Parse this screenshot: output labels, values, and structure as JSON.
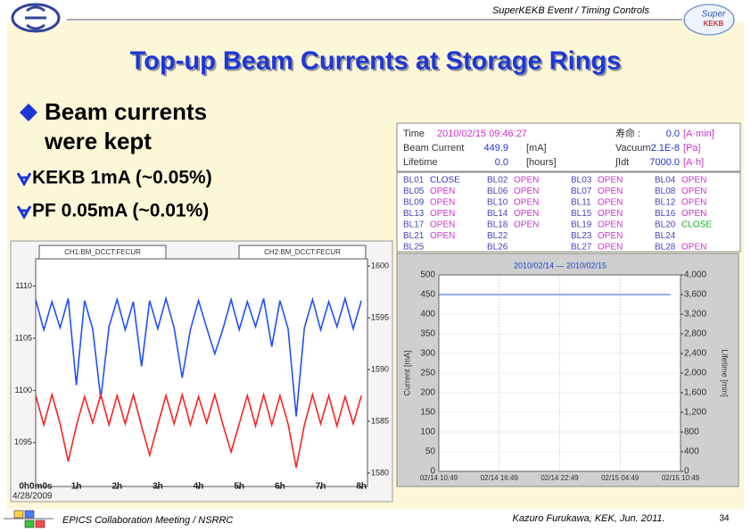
{
  "header": {
    "text": "SuperKEKB Event / Timing Controls",
    "logo_text": [
      "Super",
      "KEKB"
    ]
  },
  "title": "Top-up Beam Currents at Storage Rings",
  "main_bullet": {
    "lines": [
      "Beam currents",
      "were kept"
    ]
  },
  "sub_bullets": [
    "KEKB 1mA (~0.05%)",
    "PF 0.05mA (~0.01%)"
  ],
  "status": {
    "left": [
      [
        "Time",
        "2010/02/15 09:46:27"
      ],
      [
        "Beam Current",
        "449.9",
        "[mA]"
      ],
      [
        "Lifetime",
        "0.0",
        "[hours]"
      ]
    ],
    "right": [
      [
        "寿命 :",
        "0.0",
        "[A·min]"
      ],
      [
        "Vacuum :",
        "2.1E-8",
        "[Pa]"
      ],
      [
        "∫Idt",
        "7000.0",
        "[A·h]"
      ]
    ]
  },
  "beamlines": [
    {
      "name": "BL01",
      "status": "CLOSE",
      "color": "#3333cc"
    },
    {
      "name": "BL02",
      "status": "OPEN",
      "color": "#cc33cc"
    },
    {
      "name": "BL03",
      "status": "OPEN",
      "color": "#cc33cc"
    },
    {
      "name": "BL04",
      "status": "OPEN",
      "color": "#cc33cc"
    },
    {
      "name": "BL05",
      "status": "OPEN",
      "color": "#cc33cc"
    },
    {
      "name": "BL06",
      "status": "OPEN",
      "color": "#cc33cc"
    },
    {
      "name": "BL07",
      "status": "OPEN",
      "color": "#cc33cc"
    },
    {
      "name": "BL08",
      "status": "OPEN",
      "color": "#cc33cc"
    },
    {
      "name": "BL09",
      "status": "OPEN",
      "color": "#cc33cc"
    },
    {
      "name": "BL10",
      "status": "OPEN",
      "color": "#cc33cc"
    },
    {
      "name": "BL11",
      "status": "OPEN",
      "color": "#cc33cc"
    },
    {
      "name": "BL12",
      "status": "OPEN",
      "color": "#cc33cc"
    },
    {
      "name": "BL13",
      "status": "OPEN",
      "color": "#cc33cc"
    },
    {
      "name": "BL14",
      "status": "OPEN",
      "color": "#cc33cc"
    },
    {
      "name": "BL15",
      "status": "OPEN",
      "color": "#cc33cc"
    },
    {
      "name": "BL16",
      "status": "OPEN",
      "color": "#cc33cc"
    },
    {
      "name": "BL17",
      "status": "OPEN",
      "color": "#cc33cc"
    },
    {
      "name": "BL18",
      "status": "OPEN",
      "color": "#cc33cc"
    },
    {
      "name": "BL19",
      "status": "OPEN",
      "color": "#cc33cc"
    },
    {
      "name": "BL20",
      "status": "CLOSE",
      "color": "#22aa22"
    },
    {
      "name": "BL21",
      "status": "OPEN",
      "color": "#cc33cc"
    },
    {
      "name": "BL22"
    },
    {
      "name": "BL23",
      "status": "OPEN",
      "color": "#cc33cc"
    },
    {
      "name": "BL24"
    },
    {
      "name": "BL25"
    },
    {
      "name": "BL26"
    },
    {
      "name": "BL27",
      "status": "OPEN",
      "color": "#cc33cc"
    },
    {
      "name": "BL28",
      "status": "OPEN",
      "color": "#cc33cc"
    }
  ],
  "chart_data": [
    {
      "type": "line",
      "channel_labels": [
        "CH1:BM_DCCT:FECUR",
        "CH2:BM_DCCT:FECUR"
      ],
      "date": "4/28/2009",
      "xlim": [
        0,
        8.15
      ],
      "xticks": [
        {
          "value": 0,
          "label": "0h0m0s"
        },
        {
          "value": 1,
          "label": "1h"
        },
        {
          "value": 2,
          "label": "2h"
        },
        {
          "value": 3,
          "label": "3h"
        },
        {
          "value": 4,
          "label": "4h"
        },
        {
          "value": 5,
          "label": "5h"
        },
        {
          "value": 6,
          "label": "6h"
        },
        {
          "value": 7,
          "label": "7h"
        },
        {
          "value": 8,
          "label": "8h"
        }
      ],
      "ylim": [
        1090.8,
        1112.6
      ],
      "yticks": [
        1095,
        1100,
        1105,
        1110
      ],
      "y2lim": [
        1578.7,
        1600.7
      ],
      "y2ticks": [
        1580,
        1585,
        1590,
        1595,
        1600
      ],
      "x": [
        0,
        0.2,
        0.4,
        0.6,
        0.8,
        1,
        1.2,
        1.4,
        1.6,
        1.8,
        2,
        2.2,
        2.4,
        2.6,
        2.8,
        3,
        3.2,
        3.4,
        3.6,
        3.8,
        4,
        4.2,
        4.4,
        4.6,
        4.8,
        5,
        5.2,
        5.4,
        5.6,
        5.8,
        6,
        6.2,
        6.4,
        6.6,
        6.8,
        7,
        7.2,
        7.4,
        7.6,
        7.8,
        8
      ],
      "series": [
        {
          "color": "#1f4fff",
          "values": [
            1108.7,
            1105.8,
            1108.5,
            1106,
            1108.8,
            1100.5,
            1108.6,
            1105.9,
            1099.2,
            1106.1,
            1108.7,
            1105.8,
            1108.5,
            1102.3,
            1108.6,
            1105.9,
            1108.8,
            1106,
            1101.2,
            1105.8,
            1108.6,
            1106,
            1103.5,
            1105.9,
            1108.7,
            1105.8,
            1108.5,
            1106.1,
            1108.8,
            1104.2,
            1108.6,
            1105.9,
            1097.5,
            1106,
            1108.7,
            1105.8,
            1108.5,
            1106.1,
            1108.8,
            1105.9,
            1108.6
          ]
        },
        {
          "color": "#ff2020",
          "values": [
            1099.5,
            1096.7,
            1099.6,
            1096.8,
            1093.2,
            1096.6,
            1099.4,
            1096.9,
            1099.6,
            1096.7,
            1099.5,
            1096.8,
            1099.6,
            1096.6,
            1093.8,
            1096.7,
            1099.5,
            1096.8,
            1099.6,
            1096.7,
            1099.4,
            1096.9,
            1099.6,
            1096.7,
            1094.1,
            1096.8,
            1099.5,
            1096.6,
            1099.6,
            1096.7,
            1099.5,
            1096.8,
            1092.6,
            1096.7,
            1099.6,
            1096.8,
            1099.5,
            1096.6,
            1099.4,
            1096.8,
            1099.5
          ]
        }
      ]
    },
    {
      "type": "line",
      "title": "2010/02/14 — 2010/02/15",
      "ylabel": "Current [mA]",
      "y2label": "Lifetime [min]",
      "grid": true,
      "xlim": [
        0,
        24
      ],
      "xticks": [
        {
          "value": 0,
          "label": "02/14 10:49"
        },
        {
          "value": 6,
          "label": "02/14 16:49"
        },
        {
          "value": 12,
          "label": "02/14 22:49"
        },
        {
          "value": 18,
          "label": "02/15 04:49"
        },
        {
          "value": 24,
          "label": "02/15 10:49"
        }
      ],
      "ylim": [
        0,
        500
      ],
      "yticks": [
        0,
        50,
        100,
        150,
        200,
        250,
        300,
        350,
        400,
        450,
        500
      ],
      "y2lim": [
        0,
        4000
      ],
      "y2ticks": [
        {
          "value": 0,
          "label": "0"
        },
        {
          "value": 400,
          "label": "400"
        },
        {
          "value": 800,
          "label": "800"
        },
        {
          "value": 1200,
          "label": "1,200"
        },
        {
          "value": 1600,
          "label": "1,600"
        },
        {
          "value": 2000,
          "label": "2,000"
        },
        {
          "value": 2400,
          "label": "2,400"
        },
        {
          "value": 2800,
          "label": "2,800"
        },
        {
          "value": 3200,
          "label": "3,200"
        },
        {
          "value": 3600,
          "label": "3,600"
        },
        {
          "value": 4000,
          "label": "4,000"
        }
      ],
      "x": [
        0,
        23
      ],
      "series": [
        {
          "color": "#3355ff",
          "values": [
            450,
            450
          ]
        }
      ]
    }
  ],
  "footer": {
    "left": "EPICS Collaboration Meeting / NSRRC",
    "right": "Kazuro Furukawa, KEK, Jun. 2011.",
    "page": "34"
  }
}
